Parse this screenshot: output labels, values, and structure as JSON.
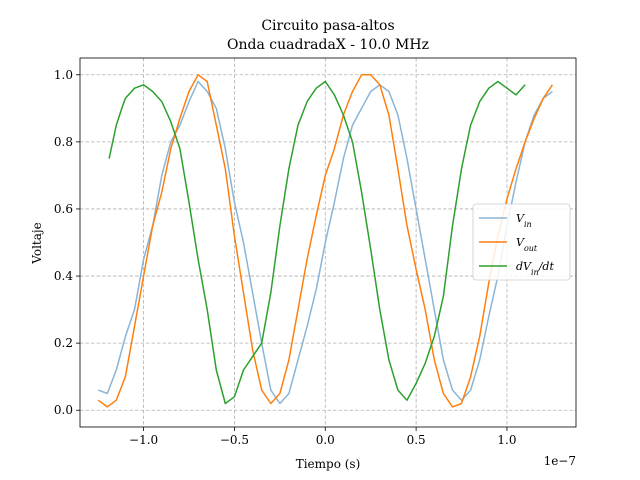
{
  "chart_data": {
    "type": "line",
    "title_line1": "Circuito pasa-altos",
    "title_line2": "Onda cuadradaX - 10.0 MHz",
    "xlabel": "Tiempo (s)",
    "ylabel": "Voltaje",
    "x_offset_label": "1e−7",
    "xlim": [
      -1.35,
      1.38
    ],
    "ylim": [
      -0.05,
      1.05
    ],
    "x_unit_scale": 1e-07,
    "xticks": [
      -1.0,
      -0.5,
      0.0,
      0.5,
      1.0
    ],
    "xtick_labels": [
      "−1.0",
      "−0.5",
      "0.0",
      "0.5",
      "1.0"
    ],
    "yticks": [
      0.0,
      0.2,
      0.4,
      0.6,
      0.8,
      1.0
    ],
    "ytick_labels": [
      "0.0",
      "0.2",
      "0.4",
      "0.6",
      "0.8",
      "1.0"
    ],
    "grid": true,
    "legend_position": "center-right",
    "series": [
      {
        "name": "V_in",
        "legend_main": "V",
        "legend_sub": "in",
        "color": "#8ab4d6",
        "x": [
          -1.25,
          -1.2,
          -1.15,
          -1.1,
          -1.05,
          -1.0,
          -0.95,
          -0.9,
          -0.85,
          -0.8,
          -0.75,
          -0.7,
          -0.65,
          -0.6,
          -0.55,
          -0.5,
          -0.45,
          -0.4,
          -0.35,
          -0.3,
          -0.25,
          -0.2,
          -0.15,
          -0.1,
          -0.05,
          0.0,
          0.05,
          0.1,
          0.15,
          0.2,
          0.25,
          0.3,
          0.35,
          0.4,
          0.45,
          0.5,
          0.55,
          0.6,
          0.65,
          0.7,
          0.75,
          0.8,
          0.85,
          0.9,
          0.95,
          1.0,
          1.05,
          1.1,
          1.15,
          1.2,
          1.25
        ],
        "y": [
          0.06,
          0.05,
          0.12,
          0.22,
          0.3,
          0.45,
          0.55,
          0.7,
          0.8,
          0.85,
          0.92,
          0.98,
          0.95,
          0.9,
          0.78,
          0.62,
          0.5,
          0.35,
          0.2,
          0.06,
          0.02,
          0.05,
          0.15,
          0.25,
          0.36,
          0.5,
          0.62,
          0.75,
          0.85,
          0.9,
          0.95,
          0.97,
          0.95,
          0.88,
          0.75,
          0.6,
          0.45,
          0.3,
          0.15,
          0.06,
          0.03,
          0.06,
          0.15,
          0.28,
          0.4,
          0.55,
          0.68,
          0.8,
          0.88,
          0.93,
          0.95
        ]
      },
      {
        "name": "V_out",
        "legend_main": "V",
        "legend_sub": "out",
        "color": "#ff7f0e",
        "x": [
          -1.25,
          -1.2,
          -1.15,
          -1.1,
          -1.05,
          -1.0,
          -0.95,
          -0.9,
          -0.85,
          -0.8,
          -0.75,
          -0.7,
          -0.65,
          -0.6,
          -0.55,
          -0.5,
          -0.45,
          -0.4,
          -0.35,
          -0.3,
          -0.25,
          -0.2,
          -0.15,
          -0.1,
          -0.05,
          0.0,
          0.05,
          0.1,
          0.15,
          0.2,
          0.25,
          0.3,
          0.35,
          0.4,
          0.45,
          0.5,
          0.55,
          0.6,
          0.65,
          0.7,
          0.75,
          0.8,
          0.85,
          0.9,
          0.95,
          1.0,
          1.05,
          1.1,
          1.15,
          1.2,
          1.25
        ],
        "y": [
          0.03,
          0.01,
          0.03,
          0.1,
          0.25,
          0.4,
          0.55,
          0.65,
          0.78,
          0.87,
          0.95,
          1.0,
          0.98,
          0.85,
          0.72,
          0.52,
          0.35,
          0.18,
          0.06,
          0.02,
          0.05,
          0.15,
          0.3,
          0.45,
          0.58,
          0.7,
          0.78,
          0.88,
          0.95,
          1.0,
          1.0,
          0.97,
          0.88,
          0.72,
          0.55,
          0.42,
          0.3,
          0.15,
          0.05,
          0.01,
          0.02,
          0.1,
          0.22,
          0.38,
          0.52,
          0.63,
          0.72,
          0.8,
          0.87,
          0.93,
          0.97
        ]
      },
      {
        "name": "dV_in/dt",
        "legend_main": "dV",
        "legend_sub": "in",
        "legend_tail": "/dt",
        "color": "#2ca02c",
        "x": [
          -1.19,
          -1.15,
          -1.12,
          -1.1,
          -1.05,
          -1.0,
          -0.95,
          -0.9,
          -0.85,
          -0.8,
          -0.75,
          -0.7,
          -0.65,
          -0.6,
          -0.55,
          -0.5,
          -0.45,
          -0.4,
          -0.35,
          -0.3,
          -0.25,
          -0.2,
          -0.15,
          -0.1,
          -0.05,
          0.0,
          0.05,
          0.1,
          0.15,
          0.2,
          0.25,
          0.3,
          0.35,
          0.4,
          0.45,
          0.5,
          0.55,
          0.6,
          0.65,
          0.7,
          0.75,
          0.8,
          0.85,
          0.9,
          0.95,
          1.0,
          1.05,
          1.1
        ],
        "y": [
          0.75,
          0.85,
          0.9,
          0.93,
          0.96,
          0.97,
          0.95,
          0.92,
          0.86,
          0.78,
          0.62,
          0.45,
          0.3,
          0.12,
          0.02,
          0.04,
          0.12,
          0.16,
          0.2,
          0.35,
          0.55,
          0.72,
          0.85,
          0.92,
          0.96,
          0.98,
          0.94,
          0.88,
          0.8,
          0.65,
          0.48,
          0.3,
          0.15,
          0.06,
          0.03,
          0.08,
          0.14,
          0.22,
          0.34,
          0.55,
          0.72,
          0.85,
          0.92,
          0.96,
          0.98,
          0.96,
          0.94,
          0.97
        ]
      }
    ]
  }
}
